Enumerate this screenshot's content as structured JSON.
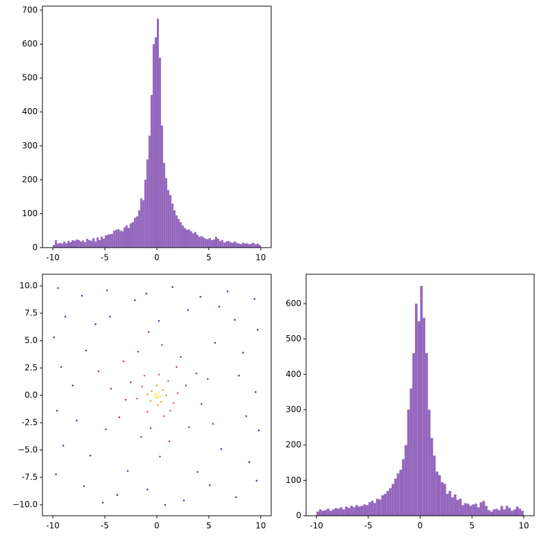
{
  "chart_data": [
    {
      "type": "histogram",
      "color": "#9467bd",
      "bins": [
        -10,
        -9.8,
        -9.6,
        -9.4,
        -9.2,
        -9,
        -8.8,
        -8.6,
        -8.4,
        -8.2,
        -8,
        -7.8,
        -7.6,
        -7.4,
        -7.2,
        -7,
        -6.8,
        -6.6,
        -6.4,
        -6.2,
        -6,
        -5.8,
        -5.6,
        -5.4,
        -5.2,
        -5,
        -4.8,
        -4.6,
        -4.4,
        -4.2,
        -4,
        -3.8,
        -3.6,
        -3.4,
        -3.2,
        -3,
        -2.8,
        -2.6,
        -2.4,
        -2.2,
        -2,
        -1.8,
        -1.6,
        -1.4,
        -1.2,
        -1,
        -0.8,
        -0.6,
        -0.4,
        -0.2,
        0,
        0.2,
        0.4,
        0.6,
        0.8,
        1,
        1.2,
        1.4,
        1.6,
        1.8,
        2,
        2.2,
        2.4,
        2.6,
        2.8,
        3,
        3.2,
        3.4,
        3.6,
        3.8,
        4,
        4.2,
        4.4,
        4.6,
        4.8,
        5,
        5.2,
        5.4,
        5.6,
        5.8,
        6,
        6.2,
        6.4,
        6.6,
        6.8,
        7,
        7.2,
        7.4,
        7.6,
        7.8,
        8,
        8.2,
        8.4,
        8.6,
        8.8,
        9,
        9.2,
        9.4,
        9.6,
        9.8,
        10
      ],
      "values": [
        8,
        22,
        12,
        14,
        12,
        18,
        13,
        20,
        16,
        22,
        20,
        24,
        22,
        18,
        21,
        16,
        26,
        22,
        20,
        28,
        18,
        30,
        22,
        32,
        26,
        36,
        38,
        40,
        40,
        50,
        52,
        55,
        50,
        48,
        60,
        66,
        58,
        72,
        75,
        88,
        92,
        110,
        145,
        140,
        200,
        260,
        330,
        450,
        600,
        620,
        675,
        560,
        360,
        250,
        205,
        170,
        155,
        130,
        110,
        95,
        85,
        75,
        65,
        58,
        52,
        54,
        48,
        42,
        46,
        38,
        32,
        34,
        30,
        26,
        25,
        28,
        22,
        24,
        32,
        26,
        20,
        22,
        15,
        18,
        20,
        16,
        14,
        18,
        14,
        12,
        10,
        15,
        12,
        13,
        10,
        12,
        14,
        10,
        12,
        8
      ],
      "xlim": [
        -11,
        11
      ],
      "ylim": [
        0,
        712
      ],
      "xticks": [
        -10,
        -5,
        0,
        5,
        10
      ],
      "yticks": [
        0,
        100,
        200,
        300,
        400,
        500,
        600,
        700
      ]
    },
    {
      "type": "scatter",
      "x": [
        -9.5,
        -7.2,
        -4.8,
        -2.1,
        1.5,
        4.2,
        6.8,
        9.4,
        -8.8,
        -5.9,
        3.0,
        7.5,
        9.7,
        -9.9,
        -6.8,
        5.6,
        8.3,
        -9.2,
        -8.1,
        7.9,
        9.5,
        -9.6,
        -7.7,
        8.6,
        9.8,
        -9.0,
        -6.4,
        6.2,
        8.9,
        -9.7,
        -7.0,
        -3.8,
        -0.9,
        2.6,
        5.1,
        7.6,
        9.6,
        -5.2,
        0.8,
        3.9,
        -2.8,
        -4.5,
        0.2,
        -1.0,
        6.0,
        -3.2,
        -1.8,
        0.5,
        2.3,
        3.8,
        4.3,
        3.1,
        1.2,
        -1.5,
        -3.6,
        -4.4,
        -2.5,
        2.8,
        -0.6,
        1.9,
        -3.0,
        4.9,
        -4.9,
        0.3,
        -0.8,
        5.4,
        -5.6,
        -1.4,
        1.1,
        1.6,
        -0.9,
        0.2,
        -1.9,
        0.7,
        2.0,
        -1.2,
        1.3,
        -0.5,
        0.6,
        0.4,
        -0.6,
        0.9,
        -0.9,
        0.0,
        0.1,
        0,
        0.2,
        -0.2,
        0.1,
        -0.1,
        0.3
      ],
      "y": [
        9.8,
        9.1,
        9.6,
        8.7,
        9.9,
        9.0,
        9.5,
        8.8,
        7.2,
        6.5,
        7.8,
        6.9,
        6.0,
        5.3,
        4.1,
        4.8,
        3.9,
        2.6,
        0.9,
        1.8,
        0.3,
        -1.4,
        -2.3,
        -1.9,
        -3.2,
        -4.6,
        -5.5,
        -4.9,
        -6.1,
        -7.2,
        -8.3,
        -9.1,
        -8.6,
        -9.6,
        -8.2,
        -9.3,
        -7.8,
        -9.8,
        -10.0,
        -7.0,
        -6.9,
        7.2,
        6.8,
        9.3,
        8.1,
        3.1,
        4.0,
        4.6,
        3.5,
        2.0,
        -0.8,
        -2.9,
        -4.2,
        -3.8,
        -2.0,
        0.6,
        1.2,
        0.9,
        -3.0,
        2.6,
        -0.4,
        1.5,
        -3.1,
        -5.6,
        5.8,
        -2.6,
        2.2,
        0.8,
        1.3,
        -0.7,
        -1.5,
        1.9,
        -0.3,
        -1.9,
        0.2,
        1.8,
        -1.4,
        0.4,
        0.5,
        -0.6,
        -0.5,
        0.0,
        0.1,
        0.9,
        -0.9,
        0,
        0.2,
        0.1,
        -0.2,
        -0.2,
        -0.1
      ],
      "colors": [
        "#6a2a9f",
        "#6a2a9f",
        "#6a2a9f",
        "#6a2a9f",
        "#6a2a9f",
        "#6a2a9f",
        "#6a2a9f",
        "#6a2a9f",
        "#6a2a9f",
        "#6a2a9f",
        "#6a2a9f",
        "#6a2a9f",
        "#6a2a9f",
        "#6a2a9f",
        "#6a2a9f",
        "#6a2a9f",
        "#6a2a9f",
        "#6a2a9f",
        "#6a2a9f",
        "#6a2a9f",
        "#6a2a9f",
        "#6a2a9f",
        "#6a2a9f",
        "#6a2a9f",
        "#6a2a9f",
        "#6a2a9f",
        "#6a2a9f",
        "#6a2a9f",
        "#6a2a9f",
        "#6a2a9f",
        "#6a2a9f",
        "#6a2a9f",
        "#6a2a9f",
        "#6a2a9f",
        "#6a2a9f",
        "#6a2a9f",
        "#6a2a9f",
        "#6a2a9f",
        "#6a2a9f",
        "#6a2a9f",
        "#6a2a9f",
        "#6a2a9f",
        "#6a2a9f",
        "#6a2a9f",
        "#6a2a9f",
        "#a83593",
        "#a83593",
        "#a83593",
        "#a83593",
        "#a83593",
        "#a83593",
        "#a83593",
        "#a83593",
        "#a83593",
        "#a83593",
        "#a83593",
        "#a83593",
        "#a83593",
        "#a83593",
        "#a83593",
        "#a83593",
        "#a83593",
        "#a83593",
        "#a83593",
        "#a83593",
        "#a83593",
        "#a83593",
        "#e3596c",
        "#e3596c",
        "#e3596c",
        "#e3596c",
        "#e3596c",
        "#e3596c",
        "#e3596c",
        "#e3596c",
        "#e3596c",
        "#e3596c",
        "#f59d3a",
        "#f59d3a",
        "#f59d3a",
        "#f59d3a",
        "#f59d3a",
        "#f59d3a",
        "#f59d3a",
        "#f59d3a",
        "#f8e43b",
        "#f8e43b",
        "#f8e43b",
        "#f8e43b",
        "#f8e43b",
        "#f8e43b"
      ],
      "xlim": [
        -11,
        11
      ],
      "ylim": [
        -11,
        11.06
      ],
      "xticks": [
        -10,
        -5,
        0,
        5,
        10
      ],
      "yticks": [
        {
          "value": -10,
          "label": "−10.0"
        },
        -7.5,
        {
          "value": -5,
          "label": "−5.0"
        },
        -2.5,
        {
          "value": 0,
          "label": "0.0"
        },
        2.5,
        {
          "value": 5,
          "label": "5.0"
        },
        7.5,
        {
          "value": 10,
          "label": "10.0"
        }
      ]
    },
    {
      "type": "histogram",
      "color": "#9467bd",
      "bins": [
        -10,
        -9.75,
        -9.5,
        -9.25,
        -9,
        -8.75,
        -8.5,
        -8.25,
        -8,
        -7.75,
        -7.5,
        -7.25,
        -7,
        -6.75,
        -6.5,
        -6.25,
        -6,
        -5.75,
        -5.5,
        -5.25,
        -5,
        -4.75,
        -4.5,
        -4.25,
        -4,
        -3.75,
        -3.5,
        -3.25,
        -3,
        -2.75,
        -2.5,
        -2.25,
        -2,
        -1.75,
        -1.5,
        -1.25,
        -1,
        -0.75,
        -0.5,
        -0.25,
        0,
        0.25,
        0.5,
        0.75,
        1,
        1.25,
        1.5,
        1.75,
        2,
        2.25,
        2.5,
        2.75,
        3,
        3.25,
        3.5,
        3.75,
        4,
        4.25,
        4.5,
        4.75,
        5,
        5.25,
        5.5,
        5.75,
        6,
        6.25,
        6.5,
        6.75,
        7,
        7.25,
        7.5,
        7.75,
        8,
        8.25,
        8.5,
        8.75,
        9,
        9.25,
        9.5,
        9.75,
        10
      ],
      "values": [
        12,
        18,
        14,
        16,
        20,
        14,
        18,
        22,
        20,
        24,
        18,
        26,
        22,
        28,
        24,
        30,
        26,
        28,
        32,
        30,
        38,
        42,
        36,
        48,
        46,
        58,
        62,
        70,
        78,
        90,
        105,
        120,
        130,
        160,
        200,
        300,
        360,
        460,
        600,
        550,
        650,
        560,
        460,
        300,
        220,
        170,
        125,
        115,
        95,
        90,
        62,
        70,
        52,
        60,
        45,
        48,
        30,
        36,
        34,
        28,
        32,
        34,
        24,
        38,
        42,
        28,
        16,
        12,
        18,
        20,
        16,
        28,
        18,
        28,
        22,
        14,
        18,
        26,
        20,
        14
      ],
      "xlim": [
        -11,
        11
      ],
      "ylim": [
        0,
        683
      ],
      "xticks": [
        -10,
        -5,
        0,
        5,
        10
      ],
      "yticks": [
        0,
        100,
        200,
        300,
        400,
        500,
        600
      ]
    }
  ]
}
